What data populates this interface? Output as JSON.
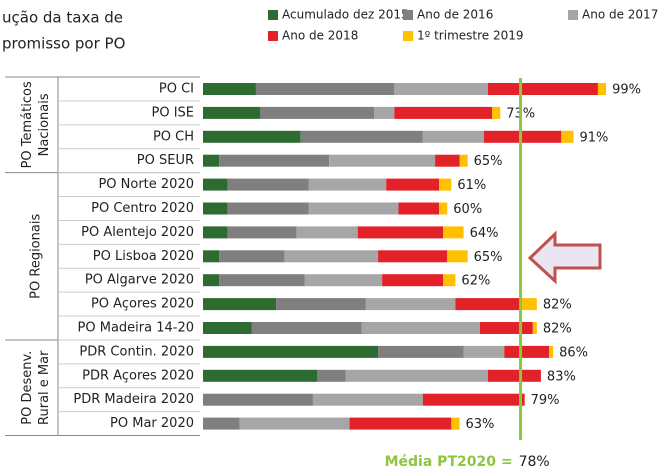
{
  "chart_data": {
    "type": "stacked-barh",
    "title_lines": [
      "ução da taxa de",
      "promisso por PO"
    ],
    "categories": [
      "PO CI",
      "PO ISE",
      "PO CH",
      "PO SEUR",
      "PO Norte 2020",
      "PO Centro 2020",
      "PO Alentejo 2020",
      "PO Lisboa 2020",
      "PO Algarve 2020",
      "PO Açores 2020",
      "PO Madeira 14-20",
      "PDR Contin. 2020",
      "PDR Açores 2020",
      "PDR Madeira 2020",
      "PO Mar 2020"
    ],
    "groups": [
      {
        "lines": [
          "PO Temáticos",
          "Nacionais"
        ],
        "rows": 4
      },
      {
        "lines": [
          "PO Regionais"
        ],
        "rows": 7
      },
      {
        "lines": [
          "PO Desenv.",
          "Rural e Mar"
        ],
        "rows": 4
      }
    ],
    "series": [
      {
        "name": "Acumulado dez 2015",
        "color": "#2e6b30",
        "values": [
          13,
          14,
          24,
          4,
          6,
          6,
          6,
          4,
          4,
          18,
          12,
          43,
          28,
          0,
          0
        ]
      },
      {
        "name": "Ano de 2016",
        "color": "#7f7f7f",
        "values": [
          34,
          28,
          30,
          27,
          20,
          20,
          17,
          16,
          21,
          22,
          27,
          21,
          7,
          27,
          9
        ]
      },
      {
        "name": "Ano de 2017",
        "color": "#a6a6a6",
        "values": [
          23,
          5,
          15,
          26,
          19,
          22,
          15,
          23,
          19,
          22,
          29,
          10,
          35,
          27,
          27
        ]
      },
      {
        "name": "Ano de 2018",
        "color": "#e32128",
        "values": [
          27,
          24,
          19,
          6,
          13,
          10,
          21,
          17,
          15,
          16,
          13,
          11,
          13,
          25,
          25
        ]
      },
      {
        "name": "1º trimestre 2019",
        "color": "#ffc000",
        "values": [
          2,
          2,
          3,
          2,
          3,
          2,
          5,
          5,
          3,
          4,
          1,
          1,
          0,
          0,
          2
        ]
      }
    ],
    "totals": [
      99,
      73,
      91,
      65,
      61,
      60,
      64,
      65,
      62,
      82,
      82,
      86,
      83,
      79,
      63
    ],
    "total_labels": [
      "99%",
      "73%",
      "91%",
      "65%",
      "61%",
      "60%",
      "64%",
      "65%",
      "62%",
      "82%",
      "82%",
      "86%",
      "83%",
      "79%",
      "63%"
    ],
    "average_text": "Média PT2020 =",
    "average": 78,
    "average_label": "78%",
    "average_color": "#8dc63f",
    "xlim": [
      0,
      112
    ]
  }
}
